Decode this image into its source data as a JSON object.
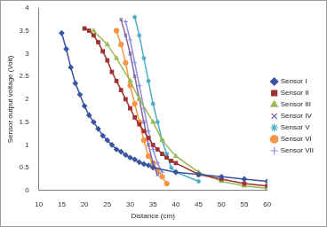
{
  "chart_data": {
    "type": "line",
    "x_label": "Distance (cm)",
    "y_label": "Sensor output voltage (Volt)",
    "xlim": [
      10,
      60
    ],
    "xticks": [
      10,
      15,
      20,
      25,
      30,
      35,
      40,
      45,
      50,
      55,
      60
    ],
    "ylim": [
      0,
      4
    ],
    "yticks": [
      0,
      0.5,
      1,
      1.5,
      2,
      2.5,
      3,
      3.5,
      4
    ],
    "grid": false,
    "legend": "right",
    "series": [
      {
        "name": "Sensor I",
        "color": "#3a55a0",
        "marker": "diamond",
        "x": [
          15,
          16,
          17,
          18,
          19,
          20,
          21,
          22,
          23,
          24,
          25,
          26,
          27,
          28,
          29,
          30,
          31,
          32,
          33,
          34,
          35,
          40,
          45,
          50,
          55,
          60
        ],
        "values": [
          3.45,
          3.1,
          2.7,
          2.35,
          2.1,
          1.85,
          1.65,
          1.5,
          1.35,
          1.2,
          1.1,
          1.0,
          0.9,
          0.85,
          0.78,
          0.72,
          0.68,
          0.62,
          0.58,
          0.55,
          0.5,
          0.4,
          0.35,
          0.3,
          0.25,
          0.2
        ]
      },
      {
        "name": "Sensor II",
        "color": "#a03232",
        "marker": "square",
        "x": [
          20,
          21,
          22,
          23,
          24,
          25,
          26,
          27,
          28,
          29,
          30,
          31,
          32,
          33,
          34,
          35,
          36,
          37,
          38,
          39,
          40,
          45,
          50,
          55,
          60
        ],
        "values": [
          3.55,
          3.5,
          3.4,
          3.25,
          3.05,
          2.85,
          2.6,
          2.4,
          2.2,
          2.0,
          1.8,
          1.6,
          1.45,
          1.3,
          1.15,
          1.0,
          0.9,
          0.8,
          0.72,
          0.65,
          0.6,
          0.35,
          0.25,
          0.15,
          0.1
        ]
      },
      {
        "name": "Sensor III",
        "color": "#9bbb59",
        "marker": "triangle",
        "x": [
          22,
          25,
          27,
          30,
          32,
          35,
          37,
          40,
          45,
          50,
          55,
          60
        ],
        "values": [
          3.5,
          3.2,
          2.9,
          2.4,
          2.0,
          1.5,
          1.1,
          0.75,
          0.4,
          0.2,
          0.1,
          0.05
        ]
      },
      {
        "name": "Sensor IV",
        "color": "#8064a2",
        "marker": "x",
        "x": [
          28,
          29,
          30,
          31,
          32,
          33,
          34,
          35,
          36
        ],
        "values": [
          3.75,
          3.4,
          3.0,
          2.5,
          2.0,
          1.5,
          1.0,
          0.6,
          0.35
        ]
      },
      {
        "name": "Sensor V",
        "color": "#4bacc6",
        "marker": "star",
        "x": [
          31,
          32,
          33,
          34,
          35,
          36,
          37,
          38,
          39,
          40,
          45
        ],
        "values": [
          3.8,
          3.4,
          2.9,
          2.4,
          1.9,
          1.5,
          1.1,
          0.8,
          0.5,
          0.4,
          0.2
        ]
      },
      {
        "name": "Sensor VI",
        "color": "#f79646",
        "marker": "circle",
        "x": [
          27,
          28,
          29,
          30,
          31,
          32,
          33,
          34,
          35,
          36,
          37,
          38
        ],
        "values": [
          3.5,
          3.2,
          2.8,
          2.3,
          1.9,
          1.5,
          1.1,
          0.75,
          0.6,
          0.45,
          0.3,
          0.15
        ]
      },
      {
        "name": "Sensor VII",
        "color": "#8c8fe0",
        "marker": "plus",
        "x": [
          29,
          30,
          31,
          32,
          33,
          34,
          35,
          36,
          37
        ],
        "values": [
          3.7,
          3.3,
          2.8,
          2.3,
          1.8,
          1.3,
          0.9,
          0.6,
          0.4
        ]
      }
    ]
  }
}
